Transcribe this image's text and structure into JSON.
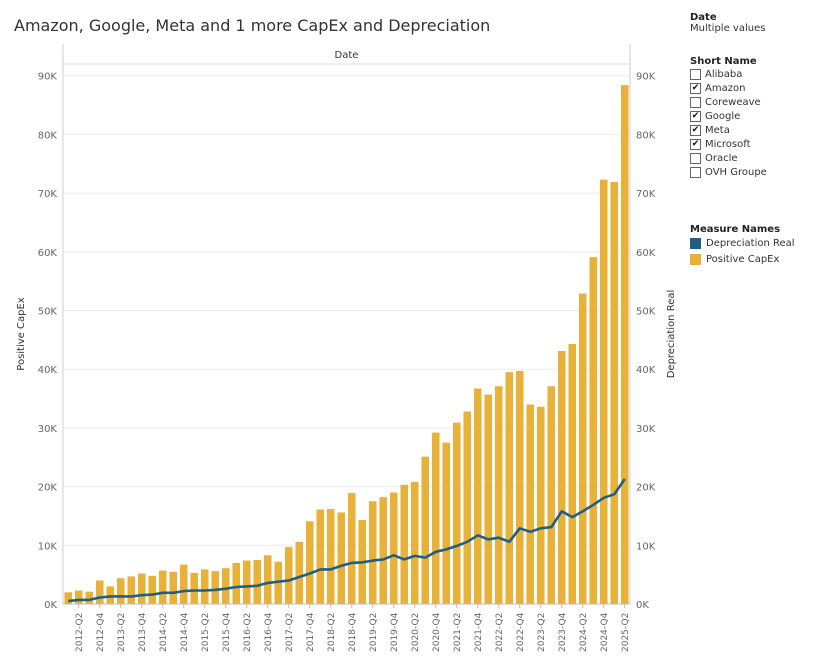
{
  "title": "Amazon, Google, Meta and 1 more CapEx and Depreciation",
  "date_filter": {
    "label": "Date",
    "value": "Multiple values"
  },
  "short_name_filter": {
    "label": "Short Name",
    "items": [
      {
        "name": "Alibaba",
        "checked": false
      },
      {
        "name": "Amazon",
        "checked": true
      },
      {
        "name": "Coreweave",
        "checked": false
      },
      {
        "name": "Google",
        "checked": true
      },
      {
        "name": "Meta",
        "checked": true
      },
      {
        "name": "Microsoft",
        "checked": true
      },
      {
        "name": "Oracle",
        "checked": false
      },
      {
        "name": "OVH Groupe",
        "checked": false
      }
    ]
  },
  "legend": {
    "label": "Measure Names",
    "items": [
      {
        "name": "Depreciation Real",
        "color": "#1f5f86"
      },
      {
        "name": "Positive CapEx",
        "color": "#e8b23a"
      }
    ]
  },
  "chart_data": {
    "type": "bar",
    "title": "Amazon, Google, Meta and 1 more CapEx and Depreciation",
    "header": "Date",
    "xlabel": "",
    "ylabel": "Positive CapEx",
    "y2label": "Depreciation Real",
    "ylim": [
      0,
      92000
    ],
    "yticks": [
      0,
      10000,
      20000,
      30000,
      40000,
      50000,
      60000,
      70000,
      80000,
      90000
    ],
    "ytick_labels": [
      "0K",
      "10K",
      "20K",
      "30K",
      "40K",
      "50K",
      "60K",
      "70K",
      "80K",
      "90K"
    ],
    "categories": [
      "2012-Q1",
      "2012-Q2",
      "2012-Q3",
      "2012-Q4",
      "2013-Q1",
      "2013-Q2",
      "2013-Q3",
      "2013-Q4",
      "2014-Q1",
      "2014-Q2",
      "2014-Q3",
      "2014-Q4",
      "2015-Q1",
      "2015-Q2",
      "2015-Q3",
      "2015-Q4",
      "2016-Q1",
      "2016-Q2",
      "2016-Q3",
      "2016-Q4",
      "2017-Q1",
      "2017-Q2",
      "2017-Q3",
      "2017-Q4",
      "2018-Q1",
      "2018-Q2",
      "2018-Q3",
      "2018-Q4",
      "2019-Q1",
      "2019-Q2",
      "2019-Q3",
      "2019-Q4",
      "2020-Q1",
      "2020-Q2",
      "2020-Q3",
      "2020-Q4",
      "2021-Q1",
      "2021-Q2",
      "2021-Q3",
      "2021-Q4",
      "2022-Q1",
      "2022-Q2",
      "2022-Q3",
      "2022-Q4",
      "2023-Q1",
      "2023-Q2",
      "2023-Q3",
      "2023-Q4",
      "2024-Q1",
      "2024-Q2",
      "2024-Q3",
      "2024-Q4",
      "2025-Q1",
      "2025-Q2"
    ],
    "xtick_labels": [
      "2012-Q2",
      "2012-Q4",
      "2013-Q2",
      "2013-Q4",
      "2014-Q2",
      "2014-Q4",
      "2015-Q2",
      "2015-Q4",
      "2016-Q2",
      "2016-Q4",
      "2017-Q2",
      "2017-Q4",
      "2018-Q2",
      "2018-Q4",
      "2019-Q2",
      "2019-Q4",
      "2020-Q2",
      "2020-Q4",
      "2021-Q2",
      "2021-Q4",
      "2022-Q2",
      "2022-Q4",
      "2023-Q2",
      "2023-Q4",
      "2024-Q2",
      "2024-Q4",
      "2025-Q2"
    ],
    "series": [
      {
        "name": "Positive CapEx",
        "type": "bar",
        "color": "#e8b23a",
        "values": [
          2000,
          2300,
          2100,
          4000,
          3000,
          4400,
          4700,
          5200,
          4800,
          5700,
          5500,
          6700,
          5300,
          5900,
          5600,
          6100,
          7000,
          7400,
          7500,
          8300,
          7200,
          9700,
          10600,
          14100,
          16100,
          16200,
          15600,
          18900,
          14300,
          17500,
          18200,
          19000,
          20300,
          20800,
          25100,
          29200,
          27500,
          30900,
          32800,
          36700,
          35700,
          37100,
          39500,
          39700,
          34000,
          33600,
          37100,
          43100,
          44300,
          52900,
          59100,
          72300,
          71900,
          88400
        ]
      },
      {
        "name": "Depreciation Real",
        "type": "line",
        "color": "#1f5f86",
        "values": [
          500,
          700,
          700,
          1100,
          1300,
          1300,
          1300,
          1500,
          1600,
          1900,
          1900,
          2200,
          2300,
          2300,
          2400,
          2600,
          2900,
          3000,
          3100,
          3600,
          3800,
          4000,
          4600,
          5200,
          5900,
          5900,
          6500,
          7000,
          7100,
          7400,
          7600,
          8300,
          7600,
          8200,
          7900,
          8900,
          9300,
          9900,
          10600,
          11700,
          11000,
          11300,
          10600,
          12900,
          12300,
          12900,
          13100,
          15800,
          14800,
          15800,
          16900,
          18100,
          18700,
          21300
        ]
      }
    ]
  }
}
